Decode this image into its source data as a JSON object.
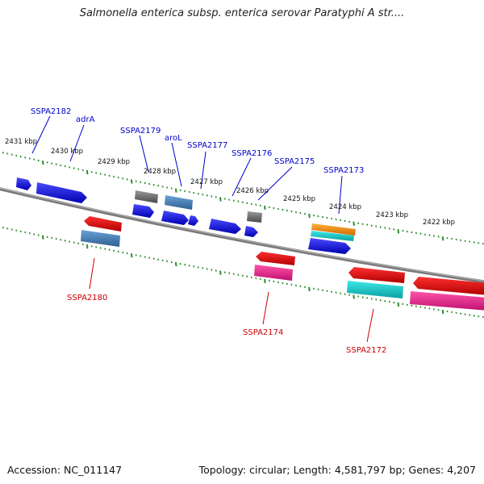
{
  "title": "Salmonella enterica subsp. enterica serovar Paratyphi A str....",
  "footer": {
    "accession": "Accession: NC_011147",
    "topology": "Topology: circular; Length: 4,581,797 bp; Genes: 4,207"
  },
  "kbp_labels": [
    "2431 kbp",
    "2430 kbp",
    "2429 kbp",
    "2428 kbp",
    "2427 kbp",
    "2426 kbp",
    "2425 kbp",
    "2424 kbp",
    "2423 kbp",
    "2422 kbp"
  ],
  "colors": {
    "backbone": "#808080",
    "tick": "#2e8b2e",
    "forward_label": "#0000cc",
    "reverse_label": "#cc0000",
    "blue": "#1515e0",
    "red": "#e81010",
    "pink": "#ee2288",
    "cyan": "#10c8c8",
    "steel": "#4682b4",
    "grey": "#777777",
    "orange": "#ff8c00"
  },
  "forward_gene_labels": [
    "SSPA2182",
    "adrA",
    "SSPA2179",
    "aroL",
    "SSPA2177",
    "SSPA2176",
    "SSPA2175",
    "SSPA2173"
  ],
  "reverse_gene_labels": [
    "SSPA2180",
    "SSPA2174",
    "SSPA2172"
  ]
}
